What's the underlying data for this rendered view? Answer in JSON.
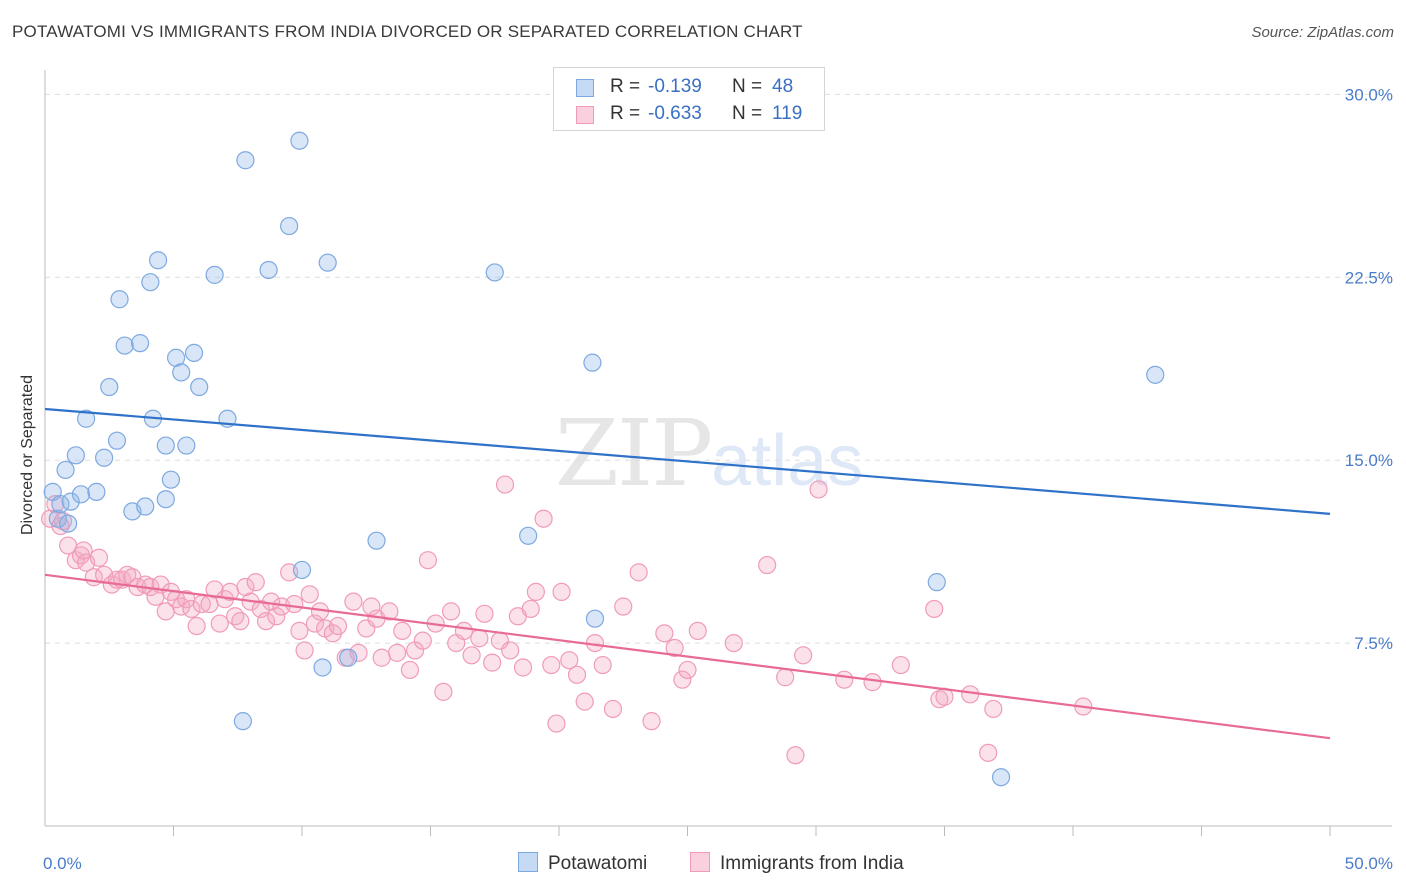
{
  "title": "POTAWATOMI VS IMMIGRANTS FROM INDIA DIVORCED OR SEPARATED CORRELATION CHART",
  "source": "Source: ZipAtlas.com",
  "watermark": {
    "zip": "ZIP",
    "atlas": "atlas"
  },
  "legend": {
    "rows": [
      {
        "r_label": "R =",
        "r_value": "-0.139",
        "n_label": "N =",
        "n_value": "48"
      },
      {
        "r_label": "R =",
        "r_value": "-0.633",
        "n_label": "N =",
        "n_value": "119"
      }
    ]
  },
  "bottom_legend": [
    {
      "label": "Potawatomi"
    },
    {
      "label": "Immigrants from India"
    }
  ],
  "chart_data": {
    "type": "scatter",
    "title": "POTAWATOMI VS IMMIGRANTS FROM INDIA DIVORCED OR SEPARATED CORRELATION CHART",
    "xlabel": "",
    "ylabel": "Divorced or Separated",
    "xlim": [
      0,
      50
    ],
    "ylim": [
      0,
      31
    ],
    "x_tick_labels": [
      "0.0%",
      "50.0%"
    ],
    "y_ticks": [
      7.5,
      15.0,
      22.5,
      30.0
    ],
    "y_tick_labels": [
      "7.5%",
      "15.0%",
      "22.5%",
      "30.0%"
    ],
    "grid": true,
    "colors": {
      "Potawatomi": "#8fb6e8",
      "Immigrants from India": "#f4a8c2",
      "blue_line": "#2f72c9",
      "pink_line": "#e86a96"
    },
    "series": [
      {
        "name": "Potawatomi",
        "trend": {
          "x": [
            0,
            50
          ],
          "y": [
            17.1,
            12.8
          ]
        },
        "points": [
          [
            0.3,
            13.7
          ],
          [
            0.5,
            12.6
          ],
          [
            0.6,
            13.2
          ],
          [
            0.8,
            14.6
          ],
          [
            0.9,
            12.4
          ],
          [
            1.0,
            13.3
          ],
          [
            1.2,
            15.2
          ],
          [
            1.4,
            13.6
          ],
          [
            1.6,
            16.7
          ],
          [
            2.0,
            13.7
          ],
          [
            2.3,
            15.1
          ],
          [
            2.5,
            18.0
          ],
          [
            2.8,
            15.8
          ],
          [
            2.9,
            21.6
          ],
          [
            3.1,
            19.7
          ],
          [
            3.4,
            12.9
          ],
          [
            3.7,
            19.8
          ],
          [
            3.9,
            13.1
          ],
          [
            4.1,
            22.3
          ],
          [
            4.2,
            16.7
          ],
          [
            4.4,
            23.2
          ],
          [
            4.7,
            15.6
          ],
          [
            4.9,
            14.2
          ],
          [
            5.1,
            19.2
          ],
          [
            5.3,
            18.6
          ],
          [
            5.5,
            15.6
          ],
          [
            5.8,
            19.4
          ],
          [
            6.0,
            18.0
          ],
          [
            6.6,
            22.6
          ],
          [
            7.1,
            16.7
          ],
          [
            7.8,
            27.3
          ],
          [
            8.7,
            22.8
          ],
          [
            9.5,
            24.6
          ],
          [
            9.9,
            28.1
          ],
          [
            10.0,
            10.5
          ],
          [
            10.8,
            6.5
          ],
          [
            11.0,
            23.1
          ],
          [
            11.8,
            6.9
          ],
          [
            12.9,
            11.7
          ],
          [
            17.5,
            22.7
          ],
          [
            18.8,
            11.9
          ],
          [
            21.3,
            19.0
          ],
          [
            21.4,
            8.5
          ],
          [
            34.7,
            10.0
          ],
          [
            37.2,
            2.0
          ],
          [
            43.2,
            18.5
          ],
          [
            7.7,
            4.3
          ],
          [
            4.7,
            13.4
          ]
        ]
      },
      {
        "name": "Immigrants from India",
        "trend": {
          "x": [
            0,
            50
          ],
          "y": [
            10.3,
            3.6
          ]
        },
        "points": [
          [
            0.2,
            12.6
          ],
          [
            0.4,
            13.2
          ],
          [
            0.6,
            12.3
          ],
          [
            0.9,
            11.5
          ],
          [
            1.2,
            10.9
          ],
          [
            1.4,
            11.1
          ],
          [
            1.6,
            10.8
          ],
          [
            1.9,
            10.2
          ],
          [
            2.1,
            11.0
          ],
          [
            2.3,
            10.3
          ],
          [
            2.6,
            9.9
          ],
          [
            2.8,
            10.1
          ],
          [
            3.0,
            10.1
          ],
          [
            3.2,
            10.3
          ],
          [
            3.4,
            10.2
          ],
          [
            3.6,
            9.8
          ],
          [
            3.9,
            9.9
          ],
          [
            4.1,
            9.8
          ],
          [
            4.3,
            9.4
          ],
          [
            4.5,
            9.9
          ],
          [
            4.7,
            8.8
          ],
          [
            4.9,
            9.6
          ],
          [
            5.1,
            9.3
          ],
          [
            5.3,
            9.0
          ],
          [
            5.5,
            9.3
          ],
          [
            5.7,
            8.9
          ],
          [
            5.9,
            8.2
          ],
          [
            6.1,
            9.1
          ],
          [
            6.4,
            9.1
          ],
          [
            6.6,
            9.7
          ],
          [
            6.8,
            8.3
          ],
          [
            7.0,
            9.3
          ],
          [
            7.2,
            9.6
          ],
          [
            7.4,
            8.6
          ],
          [
            7.6,
            8.4
          ],
          [
            7.8,
            9.8
          ],
          [
            8.0,
            9.2
          ],
          [
            8.2,
            10.0
          ],
          [
            8.4,
            8.9
          ],
          [
            8.6,
            8.4
          ],
          [
            8.8,
            9.2
          ],
          [
            9.0,
            8.6
          ],
          [
            9.2,
            9.0
          ],
          [
            9.5,
            10.4
          ],
          [
            9.7,
            9.1
          ],
          [
            9.9,
            8.0
          ],
          [
            10.1,
            7.2
          ],
          [
            10.3,
            9.5
          ],
          [
            10.5,
            8.3
          ],
          [
            10.7,
            8.8
          ],
          [
            10.9,
            8.1
          ],
          [
            11.2,
            7.9
          ],
          [
            11.4,
            8.2
          ],
          [
            11.7,
            6.9
          ],
          [
            12.0,
            9.2
          ],
          [
            12.2,
            7.1
          ],
          [
            12.5,
            8.1
          ],
          [
            12.7,
            9.0
          ],
          [
            12.9,
            8.5
          ],
          [
            13.1,
            6.9
          ],
          [
            13.4,
            8.8
          ],
          [
            13.7,
            7.1
          ],
          [
            13.9,
            8.0
          ],
          [
            14.2,
            6.4
          ],
          [
            14.4,
            7.2
          ],
          [
            14.7,
            7.6
          ],
          [
            14.9,
            10.9
          ],
          [
            15.2,
            8.3
          ],
          [
            15.5,
            5.5
          ],
          [
            15.8,
            8.8
          ],
          [
            16.0,
            7.5
          ],
          [
            16.3,
            8.0
          ],
          [
            16.6,
            7.0
          ],
          [
            16.9,
            7.7
          ],
          [
            17.1,
            8.7
          ],
          [
            17.4,
            6.7
          ],
          [
            17.7,
            7.6
          ],
          [
            17.9,
            14.0
          ],
          [
            18.1,
            7.2
          ],
          [
            18.4,
            8.6
          ],
          [
            18.6,
            6.5
          ],
          [
            18.9,
            8.9
          ],
          [
            19.1,
            9.6
          ],
          [
            19.4,
            12.6
          ],
          [
            19.7,
            6.6
          ],
          [
            19.9,
            4.2
          ],
          [
            20.1,
            9.6
          ],
          [
            20.4,
            6.8
          ],
          [
            20.7,
            6.2
          ],
          [
            21.0,
            5.1
          ],
          [
            21.4,
            7.5
          ],
          [
            21.7,
            6.6
          ],
          [
            22.1,
            4.8
          ],
          [
            22.5,
            9.0
          ],
          [
            23.1,
            10.4
          ],
          [
            23.6,
            4.3
          ],
          [
            24.1,
            7.9
          ],
          [
            24.5,
            7.3
          ],
          [
            24.8,
            6.0
          ],
          [
            25.0,
            6.4
          ],
          [
            25.4,
            8.0
          ],
          [
            26.8,
            7.5
          ],
          [
            28.1,
            10.7
          ],
          [
            28.8,
            6.1
          ],
          [
            29.2,
            2.9
          ],
          [
            29.5,
            7.0
          ],
          [
            30.1,
            13.8
          ],
          [
            31.1,
            6.0
          ],
          [
            32.2,
            5.9
          ],
          [
            33.3,
            6.6
          ],
          [
            34.6,
            8.9
          ],
          [
            34.8,
            5.2
          ],
          [
            35.0,
            5.3
          ],
          [
            36.0,
            5.4
          ],
          [
            36.7,
            3.0
          ],
          [
            36.9,
            4.8
          ],
          [
            40.4,
            4.9
          ],
          [
            0.7,
            12.5
          ],
          [
            1.5,
            11.3
          ]
        ]
      }
    ]
  }
}
